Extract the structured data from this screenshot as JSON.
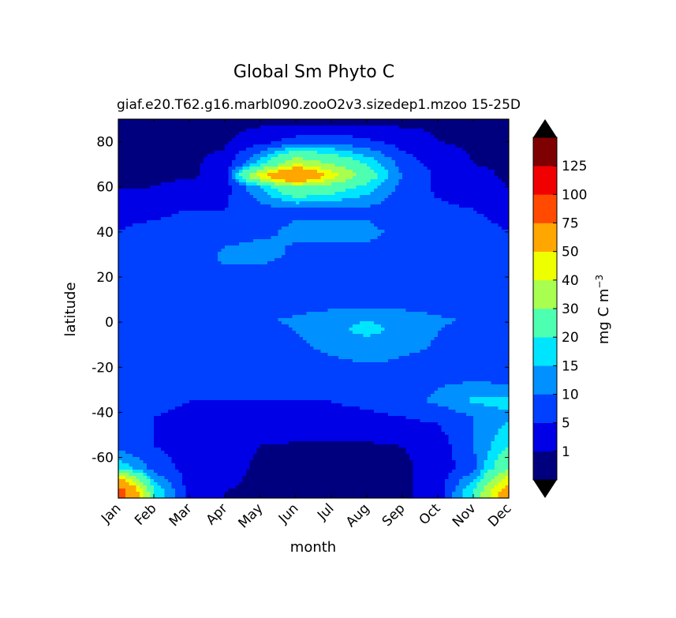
{
  "chart_data": {
    "type": "heatmap",
    "title": "Global Sm Phyto C",
    "subtitle_left": "giaf.e20.T62.g16.marbl090.zooO2v3.sizedep1.mzoo",
    "subtitle_right": "15-25D",
    "xlabel": "month",
    "ylabel": "latitude",
    "x_categories": [
      "Jan",
      "Feb",
      "Mar",
      "Apr",
      "May",
      "Jun",
      "Jul",
      "Aug",
      "Sep",
      "Oct",
      "Nov",
      "Dec"
    ],
    "y_ticks": [
      80,
      60,
      40,
      20,
      0,
      -20,
      -40,
      -60
    ],
    "ylim": [
      -78,
      90
    ],
    "colorbar": {
      "label": "mg C m",
      "label_sup": "−3",
      "levels": [
        0,
        1,
        5,
        10,
        15,
        20,
        30,
        40,
        50,
        75,
        100,
        125,
        150
      ],
      "tick_labels": [
        "1",
        "5",
        "10",
        "15",
        "20",
        "30",
        "40",
        "50",
        "75",
        "100",
        "125"
      ],
      "colors": [
        "#00007f",
        "#0000e6",
        "#0040ff",
        "#0090ff",
        "#00e5ff",
        "#4dffb0",
        "#a8ff50",
        "#eeff00",
        "#ffa600",
        "#ff4a00",
        "#f00000",
        "#7f0000"
      ],
      "extend": "both"
    },
    "z_rows": [
      {
        "lat": 88,
        "values": [
          0.5,
          0.5,
          0.5,
          0.5,
          0.5,
          0.5,
          0.5,
          0.5,
          0.5,
          0.5,
          0.5,
          0.5
        ]
      },
      {
        "lat": 80,
        "values": [
          0.5,
          0.5,
          0.5,
          0.5,
          3,
          7,
          8,
          6,
          3,
          1,
          0.5,
          0.5
        ]
      },
      {
        "lat": 70,
        "values": [
          0.5,
          0.5,
          0.5,
          2,
          18,
          40,
          30,
          20,
          8,
          3,
          1,
          0.5
        ]
      },
      {
        "lat": 65,
        "values": [
          0.5,
          0.5,
          0.5,
          2,
          45,
          80,
          45,
          25,
          10,
          4,
          2,
          0.5
        ]
      },
      {
        "lat": 60,
        "values": [
          0.5,
          1,
          2,
          3,
          15,
          30,
          25,
          18,
          8,
          4,
          2,
          1
        ]
      },
      {
        "lat": 50,
        "values": [
          4,
          4,
          5,
          5,
          8,
          9,
          9,
          9,
          7,
          6,
          5,
          4
        ]
      },
      {
        "lat": 40,
        "values": [
          5,
          6,
          7,
          8,
          9,
          11,
          11,
          11,
          9,
          8,
          6,
          5
        ]
      },
      {
        "lat": 30,
        "values": [
          6,
          6,
          7,
          11,
          12,
          9,
          9,
          9,
          8,
          8,
          7,
          6
        ]
      },
      {
        "lat": 20,
        "values": [
          6,
          7,
          8,
          9,
          8,
          6,
          6,
          6,
          6,
          6,
          6,
          6
        ]
      },
      {
        "lat": 10,
        "values": [
          6,
          6,
          6,
          6,
          6,
          6,
          6,
          6,
          6,
          6,
          6,
          6
        ]
      },
      {
        "lat": 1,
        "values": [
          7,
          7,
          7,
          8,
          9,
          11,
          14,
          15,
          14,
          11,
          9,
          8
        ]
      },
      {
        "lat": -4,
        "values": [
          6,
          6,
          6,
          6,
          8,
          10,
          14,
          16,
          14,
          10,
          8,
          7
        ]
      },
      {
        "lat": -15,
        "values": [
          6,
          6,
          6,
          6,
          7,
          8,
          10,
          11,
          10,
          9,
          8,
          7
        ]
      },
      {
        "lat": -25,
        "values": [
          6,
          6,
          6,
          6,
          6,
          6,
          7,
          8,
          9,
          9,
          9,
          8
        ]
      },
      {
        "lat": -35,
        "values": [
          6,
          6,
          5,
          5,
          5,
          5,
          5,
          6,
          8,
          11,
          16,
          17
        ]
      },
      {
        "lat": -42,
        "values": [
          8,
          5,
          4,
          4,
          4,
          4,
          4,
          4,
          5,
          6,
          10,
          14
        ]
      },
      {
        "lat": -55,
        "values": [
          8,
          5,
          3,
          2,
          1,
          0.5,
          0.5,
          0.5,
          1,
          2,
          10,
          20
        ]
      },
      {
        "lat": -65,
        "values": [
          20,
          8,
          3,
          2,
          0.5,
          0.5,
          0.5,
          0.5,
          0.5,
          2,
          8,
          30
        ]
      },
      {
        "lat": -75,
        "values": [
          90,
          20,
          3,
          1,
          0.5,
          0.5,
          0.5,
          0.5,
          0.5,
          2,
          20,
          60
        ]
      }
    ]
  }
}
